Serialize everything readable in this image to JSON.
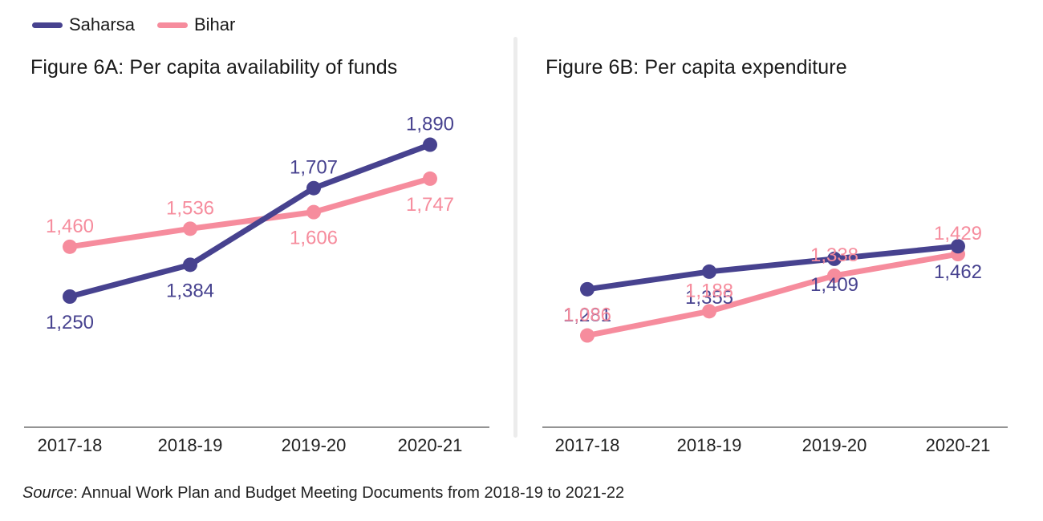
{
  "legend": [
    {
      "name": "Saharsa",
      "color": "#47428f"
    },
    {
      "name": "Bihar",
      "color": "#f68c9d"
    }
  ],
  "source": {
    "label": "Source",
    "text": ": Annual Work Plan and Budget Meeting Documents from 2018-19 to 2021-22"
  },
  "chart_data": [
    {
      "type": "line",
      "title": "Figure 6A: Per capita availability of funds",
      "categories": [
        "2017-18",
        "2018-19",
        "2019-20",
        "2020-21"
      ],
      "ylim": [
        0,
        2000
      ],
      "grid": false,
      "legend_position": "top-left",
      "series": [
        {
          "name": "Saharsa",
          "color": "#47428f",
          "values": [
            1250,
            1384,
            1707,
            1890
          ],
          "labels": [
            "1,250",
            "1,384",
            "1,707",
            "1,890"
          ]
        },
        {
          "name": "Bihar",
          "color": "#f68c9d",
          "values": [
            1460,
            1536,
            1606,
            1747
          ],
          "labels": [
            "1,460",
            "1,536",
            "1,606",
            "1,747"
          ]
        }
      ]
    },
    {
      "type": "line",
      "title": "Figure 6B: Per capita expenditure",
      "categories": [
        "2017-18",
        "2018-19",
        "2019-20",
        "2020-21"
      ],
      "ylim": [
        0,
        2000
      ],
      "grid": false,
      "legend_position": "top-left",
      "series": [
        {
          "name": "Saharsa",
          "color": "#47428f",
          "values": [
            1281,
            1355,
            1409,
            1462
          ],
          "labels": [
            "1,281",
            "1,355",
            "1,409",
            "1,462"
          ]
        },
        {
          "name": "Bihar",
          "color": "#f68c9d",
          "values": [
            1086,
            1188,
            1338,
            1429
          ],
          "labels": [
            "1,086",
            "1,188",
            "1,338",
            "1,429"
          ]
        }
      ]
    }
  ]
}
